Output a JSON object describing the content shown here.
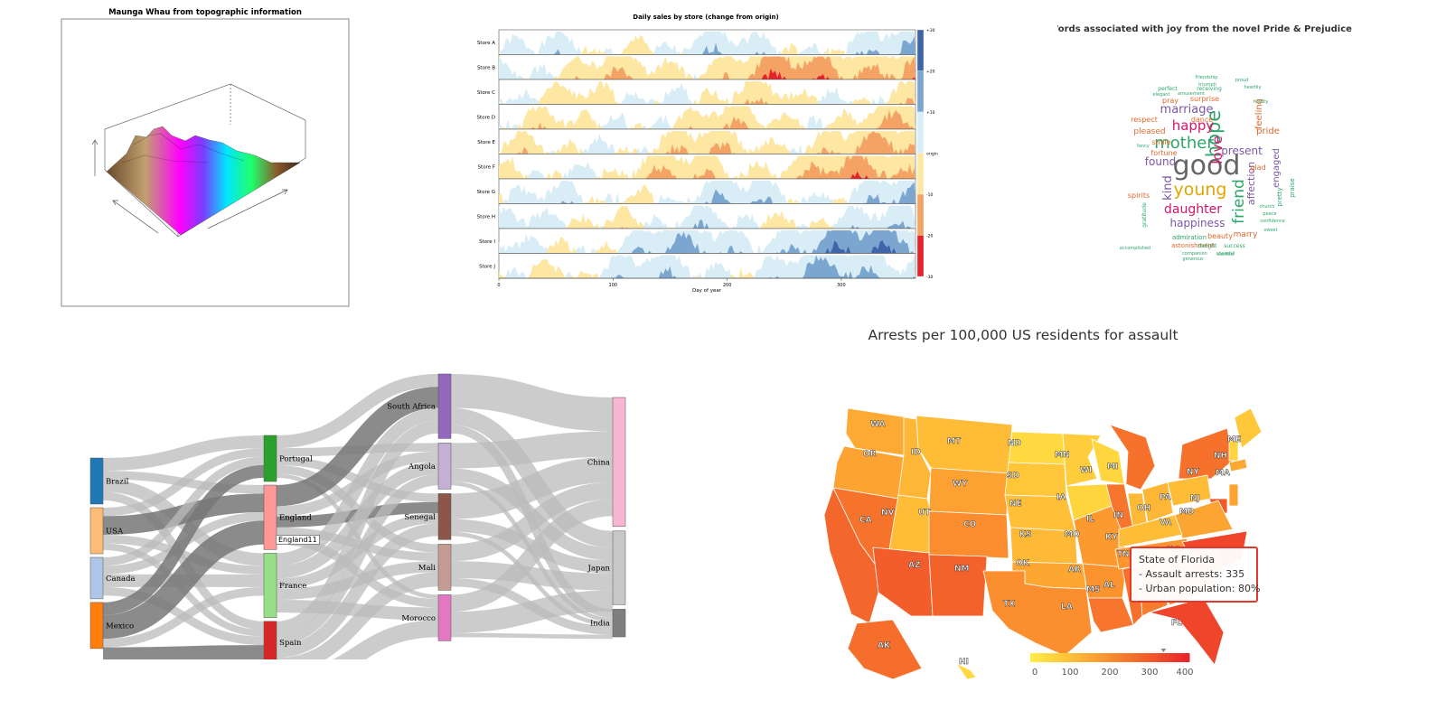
{
  "chart_data": [
    {
      "type": "surface",
      "title": "Maunga Whau from topographic information",
      "xlabel": "",
      "ylabel": "",
      "zlabel": "",
      "colormap": [
        "#ff00ff",
        "#6a00ff",
        "#00ffea",
        "#00ff66",
        "#8b5a2b",
        "#d2b48c"
      ]
    },
    {
      "type": "area",
      "title": "Daily sales by store (change from origin)",
      "xlabel": "Day of year",
      "xlim": [
        0,
        365
      ],
      "xticks": [
        0,
        100,
        200,
        300
      ],
      "categories": [
        "Store A",
        "Store B",
        "Store C",
        "Store D",
        "Store E",
        "Store F",
        "Store G",
        "Store H",
        "Store I",
        "Store J"
      ],
      "bias": [
        0.7,
        -2.0,
        -0.4,
        -0.8,
        -1.1,
        -1.4,
        0.9,
        0.3,
        1.8,
        1.2
      ],
      "colorbar": {
        "labels": [
          "+30",
          "+20",
          "+10",
          "origin",
          "-10",
          "-20",
          "-30"
        ],
        "colors": [
          "#3f65a8",
          "#7ba6cf",
          "#d8edf6",
          "#fde7a3",
          "#f5a365",
          "#e5232a"
        ]
      }
    },
    {
      "type": "wordcloud",
      "title": "Words associated with joy from the novel Pride & Prejudice",
      "words": [
        {
          "text": "good",
          "size": 30,
          "color": "#666666"
        },
        {
          "text": "young",
          "size": 19,
          "color": "#e2a600"
        },
        {
          "text": "mother",
          "size": 18,
          "color": "#2ea66b"
        },
        {
          "text": "hope",
          "size": 21,
          "color": "#2ea66b",
          "rotate": true
        },
        {
          "text": "friend",
          "size": 17,
          "color": "#2ea66b",
          "rotate": true
        },
        {
          "text": "daughter",
          "size": 14,
          "color": "#d6156b"
        },
        {
          "text": "happy",
          "size": 15,
          "color": "#d6156b"
        },
        {
          "text": "marriage",
          "size": 13,
          "color": "#7a57a8"
        },
        {
          "text": "happiness",
          "size": 12,
          "color": "#7a57a8"
        },
        {
          "text": "love",
          "size": 15,
          "color": "#d6156b",
          "rotate": true
        },
        {
          "text": "present",
          "size": 12,
          "color": "#7a57a8"
        },
        {
          "text": "found",
          "size": 12,
          "color": "#7a57a8"
        },
        {
          "text": "kind",
          "size": 13,
          "color": "#7a57a8",
          "rotate": true
        },
        {
          "text": "affection",
          "size": 11,
          "color": "#7a57a8",
          "rotate": true
        },
        {
          "text": "pleased",
          "size": 9,
          "color": "#e1692d"
        },
        {
          "text": "respect",
          "size": 8,
          "color": "#e1692d"
        },
        {
          "text": "dance",
          "size": 8,
          "color": "#e1692d"
        },
        {
          "text": "fortune",
          "size": 8,
          "color": "#e1692d"
        },
        {
          "text": "spirits",
          "size": 8,
          "color": "#e1692d"
        },
        {
          "text": "beauty",
          "size": 8,
          "color": "#e1692d"
        },
        {
          "text": "marry",
          "size": 9,
          "color": "#e1692d"
        },
        {
          "text": "pride",
          "size": 10,
          "color": "#e1692d"
        },
        {
          "text": "glad",
          "size": 8,
          "color": "#e1692d"
        },
        {
          "text": "feeling",
          "size": 10,
          "color": "#e1692d",
          "rotate": true
        },
        {
          "text": "smile",
          "size": 8,
          "color": "#e1692d"
        },
        {
          "text": "pray",
          "size": 8,
          "color": "#e1692d"
        },
        {
          "text": "surprise",
          "size": 8,
          "color": "#e1692d"
        },
        {
          "text": "engaged",
          "size": 10,
          "color": "#7a57a8",
          "rotate": true
        },
        {
          "text": "astonishment",
          "size": 7,
          "color": "#e1692d"
        },
        {
          "text": "admiration",
          "size": 7,
          "color": "#2ea66b"
        },
        {
          "text": "perfect",
          "size": 6,
          "color": "#2ea66b"
        },
        {
          "text": "elegant",
          "size": 5,
          "color": "#2ea66b"
        },
        {
          "text": "receiving",
          "size": 6,
          "color": "#2ea66b"
        },
        {
          "text": "delight",
          "size": 6,
          "color": "#2ea66b"
        },
        {
          "text": "success",
          "size": 6,
          "color": "#2ea66b"
        },
        {
          "text": "companion",
          "size": 5,
          "color": "#2ea66b"
        },
        {
          "text": "felicity",
          "size": 5,
          "color": "#2ea66b"
        },
        {
          "text": "fancy",
          "size": 5,
          "color": "#2ea66b"
        },
        {
          "text": "amusement",
          "size": 5,
          "color": "#2ea66b"
        },
        {
          "text": "triumph",
          "size": 5,
          "color": "#2ea66b"
        },
        {
          "text": "gratitude",
          "size": 6,
          "color": "#2ea66b",
          "rotate": true
        },
        {
          "text": "pretty",
          "size": 7,
          "color": "#2ea66b",
          "rotate": true
        },
        {
          "text": "praise",
          "size": 7,
          "color": "#2ea66b",
          "rotate": true
        },
        {
          "text": "confidence",
          "size": 5,
          "color": "#2ea66b"
        },
        {
          "text": "accomplished",
          "size": 5,
          "color": "#2ea66b"
        },
        {
          "text": "generous",
          "size": 5,
          "color": "#2ea66b"
        },
        {
          "text": "excited",
          "size": 5,
          "color": "#2ea66b"
        },
        {
          "text": "peace",
          "size": 5,
          "color": "#2ea66b"
        },
        {
          "text": "church",
          "size": 5,
          "color": "#2ea66b"
        },
        {
          "text": "heartily",
          "size": 5,
          "color": "#2ea66b"
        },
        {
          "text": "proud",
          "size": 5,
          "color": "#2ea66b"
        },
        {
          "text": "friendship",
          "size": 5,
          "color": "#2ea66b"
        },
        {
          "text": "cheerful",
          "size": 5,
          "color": "#2ea66b"
        },
        {
          "text": "sweet",
          "size": 5,
          "color": "#2ea66b"
        }
      ]
    },
    {
      "type": "sankey",
      "title": "",
      "tooltip": "England11",
      "nodes": [
        {
          "name": "Brazil",
          "col": 0,
          "color": "#1f77b4",
          "value": 5
        },
        {
          "name": "USA",
          "col": 0,
          "color": "#ffbb78",
          "value": 5
        },
        {
          "name": "Canada",
          "col": 0,
          "color": "#aec7e8",
          "value": 4.5
        },
        {
          "name": "Mexico",
          "col": 0,
          "color": "#ff7f0e",
          "value": 5
        },
        {
          "name": "Portugal",
          "col": 1,
          "color": "#2ca02c",
          "value": 5
        },
        {
          "name": "England",
          "col": 1,
          "color": "#ff9896",
          "value": 7
        },
        {
          "name": "France",
          "col": 1,
          "color": "#98df8a",
          "value": 7
        },
        {
          "name": "Spain",
          "col": 1,
          "color": "#d62728",
          "value": 4.5
        },
        {
          "name": "South Africa",
          "col": 2,
          "color": "#9467bd",
          "value": 7
        },
        {
          "name": "Angola",
          "col": 2,
          "color": "#c5b0d5",
          "value": 5
        },
        {
          "name": "Senegal",
          "col": 2,
          "color": "#8c564b",
          "value": 5
        },
        {
          "name": "Mali",
          "col": 2,
          "color": "#c49c94",
          "value": 5
        },
        {
          "name": "Morocco",
          "col": 2,
          "color": "#e377c2",
          "value": 5
        },
        {
          "name": "China",
          "col": 3,
          "color": "#f7b6d2",
          "value": 14
        },
        {
          "name": "Japan",
          "col": 3,
          "color": "#c7c7c7",
          "value": 8
        },
        {
          "name": "India",
          "col": 3,
          "color": "#7f7f7f",
          "value": 3
        }
      ],
      "links": [
        {
          "source": "Brazil",
          "target": "Portugal",
          "value": 1.5
        },
        {
          "source": "Brazil",
          "target": "England",
          "value": 1
        },
        {
          "source": "Brazil",
          "target": "France",
          "value": 1.5
        },
        {
          "source": "Brazil",
          "target": "Spain",
          "value": 1
        },
        {
          "source": "USA",
          "target": "Portugal",
          "value": 1
        },
        {
          "source": "USA",
          "target": "England",
          "value": 2.2
        },
        {
          "source": "USA",
          "target": "France",
          "value": 1
        },
        {
          "source": "USA",
          "target": "Spain",
          "value": 0.8
        },
        {
          "source": "Canada",
          "target": "Portugal",
          "value": 1
        },
        {
          "source": "Canada",
          "target": "England",
          "value": 1
        },
        {
          "source": "Canada",
          "target": "France",
          "value": 1.5
        },
        {
          "source": "Canada",
          "target": "Spain",
          "value": 1
        },
        {
          "source": "Mexico",
          "target": "Portugal",
          "value": 1.5
        },
        {
          "source": "Mexico",
          "target": "England",
          "value": 2.8
        },
        {
          "source": "Mexico",
          "target": "France",
          "value": 1
        },
        {
          "source": "Mexico",
          "target": "Spain",
          "value": 1.7
        },
        {
          "source": "Portugal",
          "target": "South Africa",
          "value": 1.5
        },
        {
          "source": "Portugal",
          "target": "Angola",
          "value": 1
        },
        {
          "source": "Portugal",
          "target": "Senegal",
          "value": 1
        },
        {
          "source": "Portugal",
          "target": "Mali",
          "value": 1
        },
        {
          "source": "Portugal",
          "target": "Morocco",
          "value": 0.5
        },
        {
          "source": "England",
          "target": "South Africa",
          "value": 2.5
        },
        {
          "source": "England",
          "target": "Angola",
          "value": 1.2
        },
        {
          "source": "England",
          "target": "Senegal",
          "value": 1.3
        },
        {
          "source": "England",
          "target": "Mali",
          "value": 1
        },
        {
          "source": "England",
          "target": "Morocco",
          "value": 1
        },
        {
          "source": "France",
          "target": "South Africa",
          "value": 1.5
        },
        {
          "source": "France",
          "target": "Angola",
          "value": 1.5
        },
        {
          "source": "France",
          "target": "Senegal",
          "value": 1.2
        },
        {
          "source": "France",
          "target": "Mali",
          "value": 1.3
        },
        {
          "source": "France",
          "target": "Morocco",
          "value": 1.5
        },
        {
          "source": "Spain",
          "target": "South Africa",
          "value": 1.5
        },
        {
          "source": "Spain",
          "target": "Angola",
          "value": 1.3
        },
        {
          "source": "Spain",
          "target": "Senegal",
          "value": 1.5
        },
        {
          "source": "Spain",
          "target": "Mali",
          "value": 1.7
        },
        {
          "source": "Spain",
          "target": "Morocco",
          "value": 2
        },
        {
          "source": "South Africa",
          "target": "China",
          "value": 4
        },
        {
          "source": "South Africa",
          "target": "Japan",
          "value": 2
        },
        {
          "source": "South Africa",
          "target": "India",
          "value": 1
        },
        {
          "source": "Angola",
          "target": "China",
          "value": 3
        },
        {
          "source": "Angola",
          "target": "Japan",
          "value": 1.5
        },
        {
          "source": "Angola",
          "target": "India",
          "value": 0.5
        },
        {
          "source": "Senegal",
          "target": "China",
          "value": 3
        },
        {
          "source": "Senegal",
          "target": "Japan",
          "value": 1.5
        },
        {
          "source": "Senegal",
          "target": "India",
          "value": 0.5
        },
        {
          "source": "Mali",
          "target": "China",
          "value": 2
        },
        {
          "source": "Mali",
          "target": "Japan",
          "value": 2
        },
        {
          "source": "Mali",
          "target": "India",
          "value": 1
        },
        {
          "source": "Morocco",
          "target": "China",
          "value": 2
        },
        {
          "source": "Morocco",
          "target": "Japan",
          "value": 2.5
        },
        {
          "source": "Morocco",
          "target": "India",
          "value": 0.5
        }
      ]
    },
    {
      "type": "choropleth",
      "title": "Arrests per 100,000 US residents for assault",
      "colorbar": {
        "labels": [
          "0",
          "100",
          "200",
          "300",
          "400"
        ],
        "range": [
          0,
          400
        ],
        "colors": [
          "#ffee44",
          "#ffc038",
          "#fb8f2e",
          "#f25a2b",
          "#e8202a"
        ]
      },
      "marker_value": 335,
      "states": [
        {
          "label": "WA",
          "value": 145
        },
        {
          "label": "OR",
          "value": 159
        },
        {
          "label": "ID",
          "value": 120
        },
        {
          "label": "MT",
          "value": 109
        },
        {
          "label": "ND",
          "value": 45
        },
        {
          "label": "MN",
          "value": 72
        },
        {
          "label": "WI",
          "value": 53
        },
        {
          "label": "MI",
          "value": 255
        },
        {
          "label": "NY",
          "value": 254
        },
        {
          "label": "NH",
          "value": 57
        },
        {
          "label": "ME",
          "value": 83
        },
        {
          "label": "MA",
          "value": 149
        },
        {
          "label": "CA",
          "value": 276
        },
        {
          "label": "NV",
          "value": 252
        },
        {
          "label": "UT",
          "value": 109
        },
        {
          "label": "WY",
          "value": 161
        },
        {
          "label": "SD",
          "value": 86
        },
        {
          "label": "NE",
          "value": 102
        },
        {
          "label": "IA",
          "value": 56
        },
        {
          "label": "IL",
          "value": 249
        },
        {
          "label": "IN",
          "value": 113
        },
        {
          "label": "OH",
          "value": 120
        },
        {
          "label": "PA",
          "value": 106
        },
        {
          "label": "NJ",
          "value": 159
        },
        {
          "label": "MD",
          "value": 300
        },
        {
          "label": "VA",
          "value": 156
        },
        {
          "label": "CO",
          "value": 204
        },
        {
          "label": "KS",
          "value": 115
        },
        {
          "label": "MO",
          "value": 178
        },
        {
          "label": "KY",
          "value": 109
        },
        {
          "label": "AZ",
          "value": 294
        },
        {
          "label": "NM",
          "value": 285
        },
        {
          "label": "OK",
          "value": 151
        },
        {
          "label": "AR",
          "value": 190
        },
        {
          "label": "TN",
          "value": 188
        },
        {
          "label": "NC",
          "value": 337
        },
        {
          "label": "SC",
          "value": 279
        },
        {
          "label": "TX",
          "value": 201
        },
        {
          "label": "LA",
          "value": 249
        },
        {
          "label": "MS",
          "value": 259
        },
        {
          "label": "AL",
          "value": 236
        },
        {
          "label": "GA",
          "value": 211
        },
        {
          "label": "FL",
          "value": 335
        },
        {
          "label": "AK",
          "value": 263
        },
        {
          "label": "HI",
          "value": 46
        }
      ],
      "tooltip": {
        "title": "State of Florida",
        "line1": "- Assault arrests: 335",
        "line2": "- Urban population: 80%"
      }
    }
  ]
}
